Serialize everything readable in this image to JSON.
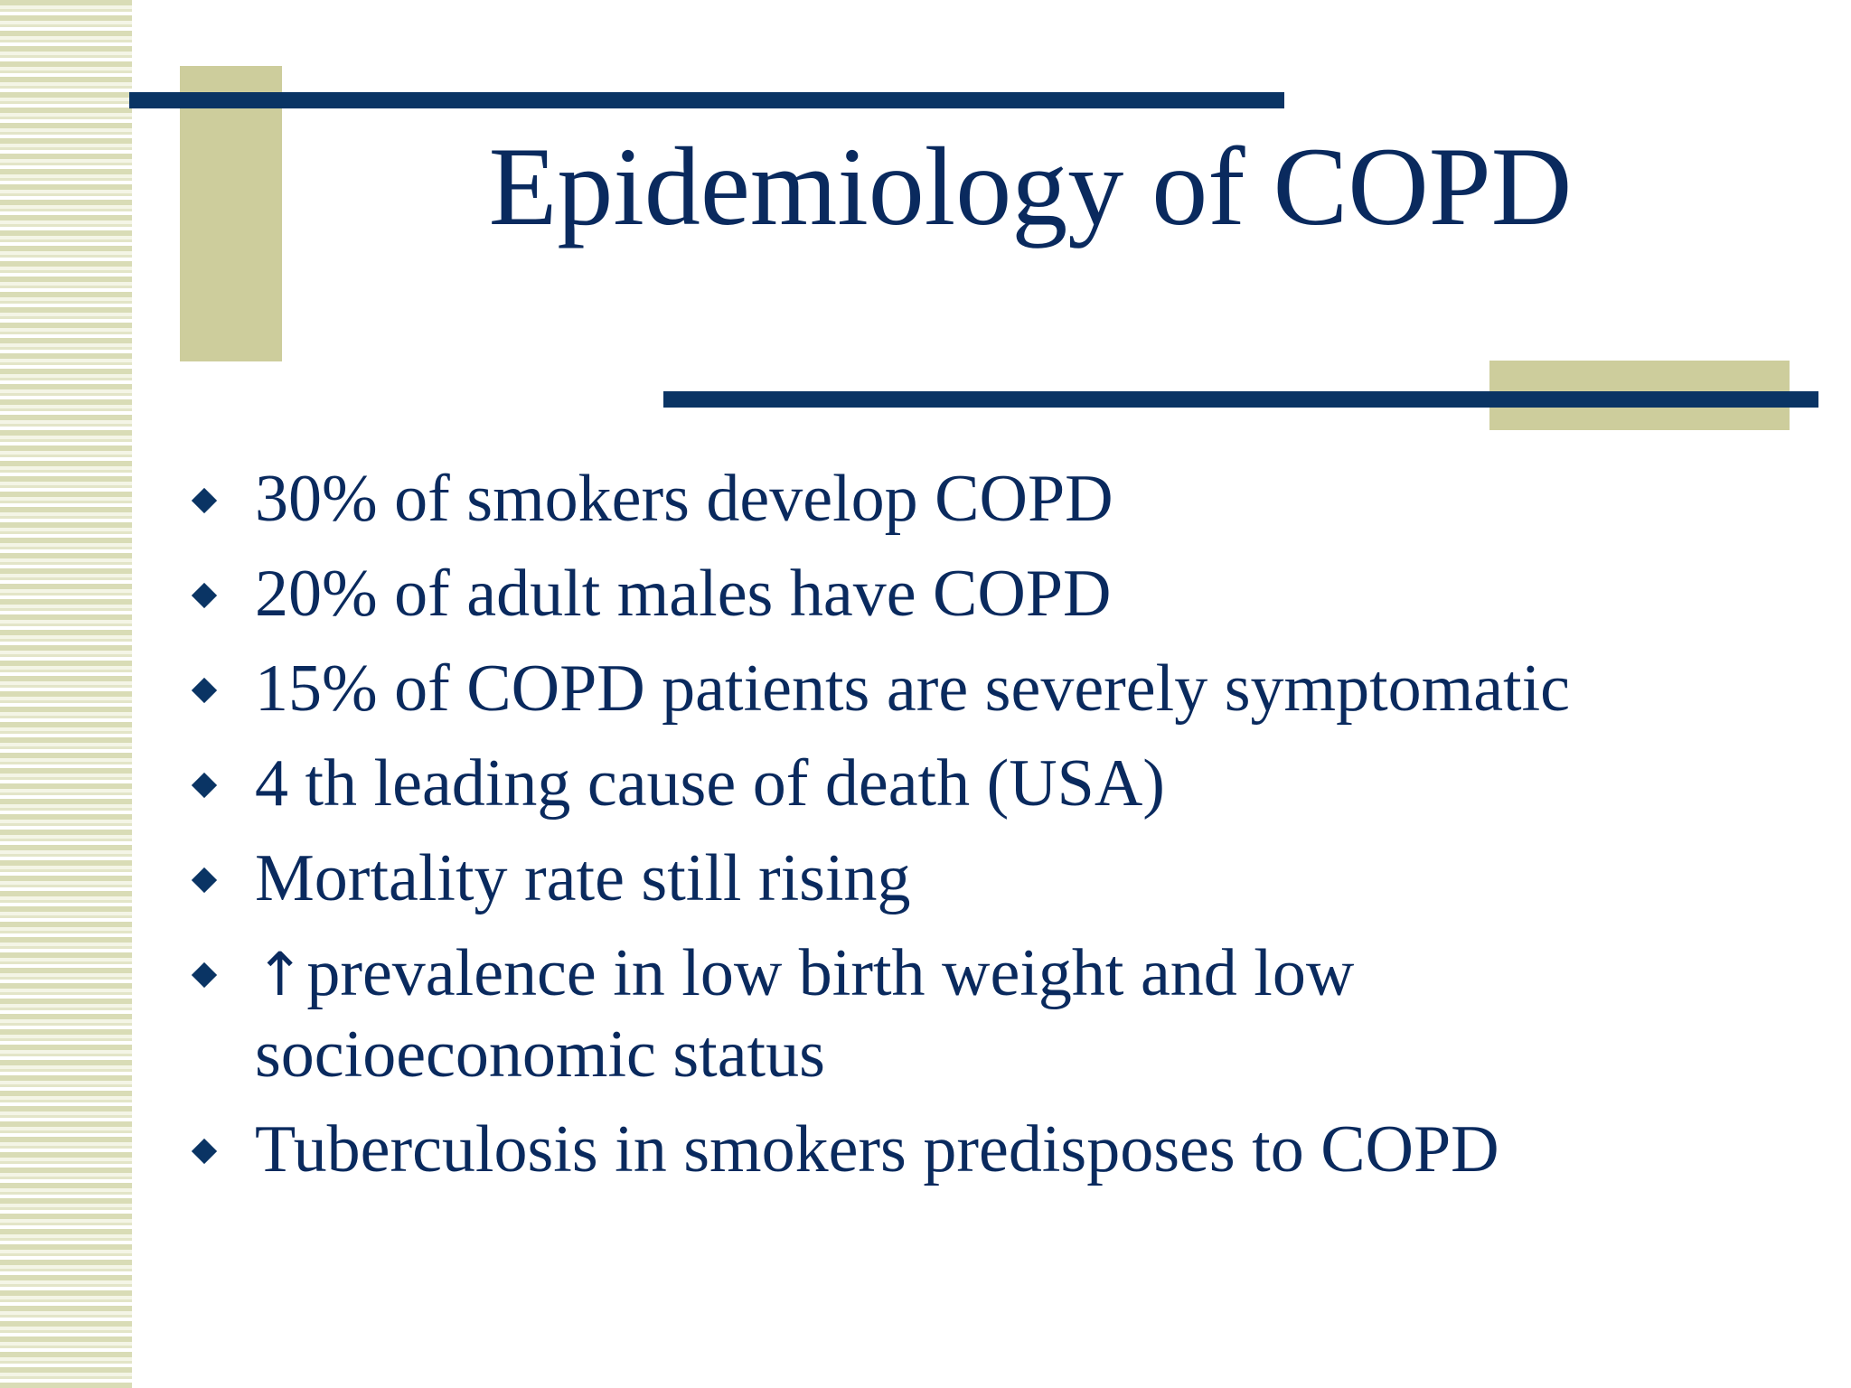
{
  "slide": {
    "title": "Epidemiology of COPD",
    "bullets": [
      {
        "text": "30% of smokers develop COPD"
      },
      {
        "text": "20% of adult males have COPD"
      },
      {
        "text": "15% of COPD patients are severely symptomatic"
      },
      {
        "text": "4 th leading cause of death (USA)"
      },
      {
        "text": "Mortality rate still rising"
      },
      {
        "prefix": "↑",
        "text": "prevalence in low birth weight and low socioeconomic status"
      },
      {
        "text": "Tuberculosis in smokers predisposes to COPD"
      }
    ]
  },
  "colors": {
    "text": "#0a2a5e",
    "rule": "#0a3464",
    "accent_block": "#cdcd9c"
  },
  "icons": {
    "bullet": "diamond-bullet-icon",
    "arrow": "up-arrow-icon"
  }
}
